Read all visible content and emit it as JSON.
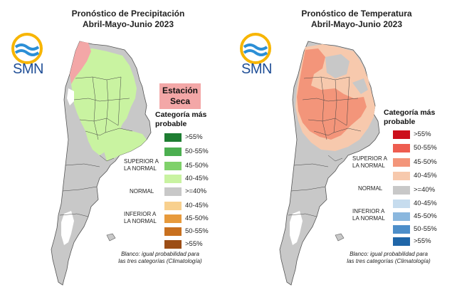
{
  "panels": [
    {
      "title_line1": "Pronóstico de Precipitación",
      "title_line2": "Abril-Mayo-Junio 2023",
      "logo_text": "SMN",
      "dry_station_line1": "Estación",
      "dry_station_line2": "Seca",
      "legend_title_line1": "Categoría más",
      "legend_title_line2": "probable",
      "legend_items": [
        {
          "label": ">55%",
          "color": "#1e7d32"
        },
        {
          "label": "50-55%",
          "color": "#4caf50"
        },
        {
          "label": "45-50%",
          "color": "#7fd16a"
        },
        {
          "label": "40-45%",
          "color": "#c9f3a1"
        },
        {
          "label": ">=40%",
          "color": "#c8c8c8"
        },
        {
          "label": "40-45%",
          "color": "#f8d08e"
        },
        {
          "label": "45-50%",
          "color": "#e79a3c"
        },
        {
          "label": "50-55%",
          "color": "#c8701f"
        },
        {
          "label": ">55%",
          "color": "#9c4e16"
        }
      ],
      "cat_upper_1": "SUPERIOR A",
      "cat_upper_2": "LA NORMAL",
      "cat_normal": "NORMAL",
      "cat_lower_1": "INFERIOR A",
      "cat_lower_2": "LA NORMAL",
      "footnote_1": "Blanco: igual probabilidad para",
      "footnote_2": "las tres categorías (Climatología)"
    },
    {
      "title_line1": "Pronóstico de Temperatura",
      "title_line2": "Abril-Mayo-Junio 2023",
      "logo_text": "SMN",
      "legend_title_line1": "Categoría más",
      "legend_title_line2": "probable",
      "legend_items": [
        {
          "label": ">55%",
          "color": "#cc0f1c"
        },
        {
          "label": "50-55%",
          "color": "#ee5d50"
        },
        {
          "label": "45-50%",
          "color": "#f3957a"
        },
        {
          "label": "40-45%",
          "color": "#f7c9ad"
        },
        {
          "label": ">=40%",
          "color": "#c8c8c8"
        },
        {
          "label": "40-45%",
          "color": "#c6dcee"
        },
        {
          "label": "45-50%",
          "color": "#8ab7de"
        },
        {
          "label": "50-55%",
          "color": "#4d8ec9"
        },
        {
          "label": ">55%",
          "color": "#1f66a8"
        }
      ],
      "cat_upper_1": "SUPERIOR A",
      "cat_upper_2": "LA NORMAL",
      "cat_normal": "NORMAL",
      "cat_lower_1": "INFERIOR A",
      "cat_lower_2": "LA NORMAL",
      "footnote_1": "Blanco: igual probabilidad para",
      "footnote_2": "las tres categorías (Climatología)"
    }
  ]
}
